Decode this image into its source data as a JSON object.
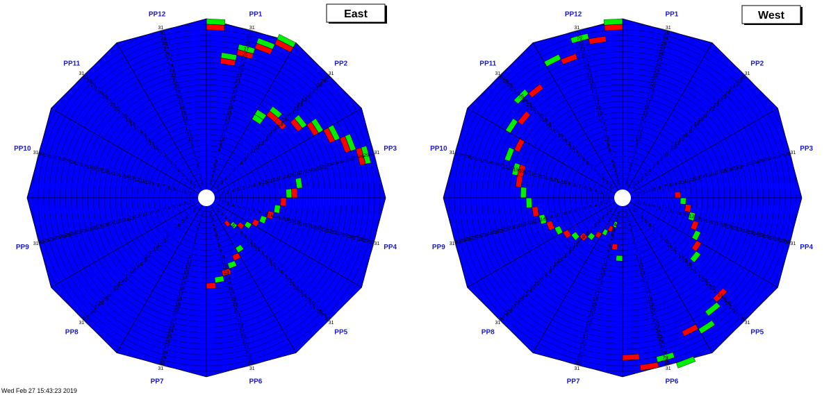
{
  "colors": {
    "base": "#0000ff",
    "highlight_green": "#00ee00",
    "highlight_red": "#ff0000",
    "grid": "#000000",
    "label": "#1a1acc"
  },
  "wheels": [
    {
      "title": "East",
      "sector_labels": [
        "PP1",
        "PP2",
        "PP3",
        "PP4",
        "PP5",
        "PP6",
        "PP7",
        "PP8",
        "PP9",
        "PP10",
        "PP11",
        "PP12"
      ],
      "direction": "clockwise",
      "highlights": [
        {
          "ring": 30,
          "color": "red",
          "sector": 0
        },
        {
          "ring": 31,
          "color": "green",
          "sector": 0
        },
        {
          "ring": 25,
          "color": "green",
          "sector": 1
        },
        {
          "ring": 24,
          "color": "red",
          "sector": 1
        },
        {
          "ring": 27,
          "color": "green",
          "sector": 2
        },
        {
          "ring": 26,
          "color": "red",
          "sector": 2
        },
        {
          "ring": 29,
          "color": "green",
          "sector": 3
        },
        {
          "ring": 28,
          "color": "red",
          "sector": 3
        },
        {
          "ring": 31,
          "color": "green",
          "sector": 4
        },
        {
          "ring": 30,
          "color": "red",
          "sector": 4
        },
        {
          "ring": 16,
          "color": "green",
          "sector": 5
        },
        {
          "ring": 17,
          "color": "green",
          "sector": 5
        },
        {
          "ring": 18,
          "color": "red",
          "sector": 6
        },
        {
          "ring": 19,
          "color": "green",
          "sector": 6
        },
        {
          "ring": 18,
          "color": "red",
          "sector": 7
        },
        {
          "ring": 21,
          "color": "green",
          "sector": 8
        },
        {
          "ring": 20,
          "color": "red",
          "sector": 8
        },
        {
          "ring": 23,
          "color": "green",
          "sector": 9
        },
        {
          "ring": 22,
          "color": "red",
          "sector": 9
        },
        {
          "ring": 25,
          "color": "green",
          "sector": 10
        },
        {
          "ring": 24,
          "color": "red",
          "sector": 10
        },
        {
          "ring": 27,
          "color": "green",
          "sector": 11
        },
        {
          "ring": 26,
          "color": "red",
          "sector": 11
        },
        {
          "ring": 29,
          "color": "green",
          "sector": 12
        },
        {
          "ring": 28,
          "color": "red",
          "sector": 12
        },
        {
          "ring": 16,
          "color": "green",
          "sector": 13
        },
        {
          "ring": 15,
          "color": "red",
          "sector": 14
        },
        {
          "ring": 14,
          "color": "green",
          "sector": 14
        },
        {
          "ring": 13,
          "color": "red",
          "sector": 15
        },
        {
          "ring": 12,
          "color": "green",
          "sector": 16
        },
        {
          "ring": 11,
          "color": "red",
          "sector": 17
        },
        {
          "ring": 10,
          "color": "green",
          "sector": 18
        },
        {
          "ring": 9,
          "color": "red",
          "sector": 19
        },
        {
          "ring": 8,
          "color": "green",
          "sector": 20
        },
        {
          "ring": 7,
          "color": "red",
          "sector": 21
        },
        {
          "ring": 6,
          "color": "green",
          "sector": 22
        },
        {
          "ring": 5,
          "color": "red",
          "sector": 23
        },
        {
          "ring": 10,
          "color": "green",
          "sector": 24
        },
        {
          "ring": 11,
          "color": "red",
          "sector": 25
        },
        {
          "ring": 12,
          "color": "green",
          "sector": 26
        },
        {
          "ring": 13,
          "color": "red",
          "sector": 27
        },
        {
          "ring": 14,
          "color": "green",
          "sector": 28
        },
        {
          "ring": 15,
          "color": "red",
          "sector": 29
        }
      ]
    },
    {
      "title": "West",
      "sector_labels": [
        "PP12",
        "PP11",
        "PP10",
        "PP9",
        "PP8",
        "PP7",
        "PP6",
        "PP5",
        "PP4",
        "PP3",
        "PP2",
        "PP1"
      ],
      "direction": "counterclockwise",
      "highlights": [
        {
          "ring": 30,
          "color": "red",
          "sector": 0
        },
        {
          "ring": 31,
          "color": "green",
          "sector": 0
        },
        {
          "ring": 28,
          "color": "red",
          "sector": 1
        },
        {
          "ring": 29,
          "color": "green",
          "sector": 2
        },
        {
          "ring": 26,
          "color": "red",
          "sector": 3
        },
        {
          "ring": 27,
          "color": "green",
          "sector": 4
        },
        {
          "ring": 24,
          "color": "red",
          "sector": 6
        },
        {
          "ring": 25,
          "color": "green",
          "sector": 7
        },
        {
          "ring": 22,
          "color": "red",
          "sector": 8
        },
        {
          "ring": 23,
          "color": "green",
          "sector": 9
        },
        {
          "ring": 20,
          "color": "red",
          "sector": 10
        },
        {
          "ring": 21,
          "color": "green",
          "sector": 11
        },
        {
          "ring": 18,
          "color": "red",
          "sector": 12
        },
        {
          "ring": 19,
          "color": "green",
          "sector": 12
        },
        {
          "ring": 18,
          "color": "red",
          "sector": 13
        },
        {
          "ring": 17,
          "color": "green",
          "sector": 14
        },
        {
          "ring": 16,
          "color": "green",
          "sector": 15
        },
        {
          "ring": 15,
          "color": "red",
          "sector": 16
        },
        {
          "ring": 14,
          "color": "green",
          "sector": 17
        },
        {
          "ring": 13,
          "color": "red",
          "sector": 18
        },
        {
          "ring": 12,
          "color": "green",
          "sector": 19
        },
        {
          "ring": 11,
          "color": "red",
          "sector": 20
        },
        {
          "ring": 10,
          "color": "green",
          "sector": 21
        },
        {
          "ring": 9,
          "color": "red",
          "sector": 22
        },
        {
          "ring": 8,
          "color": "green",
          "sector": 23
        },
        {
          "ring": 7,
          "color": "red",
          "sector": 24
        },
        {
          "ring": 6,
          "color": "green",
          "sector": 25
        },
        {
          "ring": 5,
          "color": "red",
          "sector": 26
        },
        {
          "ring": 4,
          "color": "green",
          "sector": 27
        },
        {
          "ring": 8,
          "color": "red",
          "sector": 28
        },
        {
          "ring": 10,
          "color": "green",
          "sector": 29
        },
        {
          "ring": 28,
          "color": "red",
          "sector": 30
        },
        {
          "ring": 30,
          "color": "red",
          "sector": 31
        },
        {
          "ring": 29,
          "color": "green",
          "sector": 32
        },
        {
          "ring": 31,
          "color": "green",
          "sector": 33
        },
        {
          "ring": 26,
          "color": "red",
          "sector": 34
        },
        {
          "ring": 27,
          "color": "green",
          "sector": 35
        },
        {
          "ring": 25,
          "color": "green",
          "sector": 36
        },
        {
          "ring": 24,
          "color": "red",
          "sector": 37
        },
        {
          "ring": 16,
          "color": "green",
          "sector": 38
        },
        {
          "ring": 15,
          "color": "red",
          "sector": 39
        },
        {
          "ring": 14,
          "color": "green",
          "sector": 40
        },
        {
          "ring": 13,
          "color": "red",
          "sector": 41
        },
        {
          "ring": 12,
          "color": "green",
          "sector": 42
        },
        {
          "ring": 11,
          "color": "red",
          "sector": 43
        },
        {
          "ring": 10,
          "color": "green",
          "sector": 44
        },
        {
          "ring": 9,
          "color": "red",
          "sector": 45
        }
      ]
    }
  ],
  "ring_count": 31,
  "sector_count": 60,
  "footer_text": "Wed Feb 27 15:43:23 2019"
}
